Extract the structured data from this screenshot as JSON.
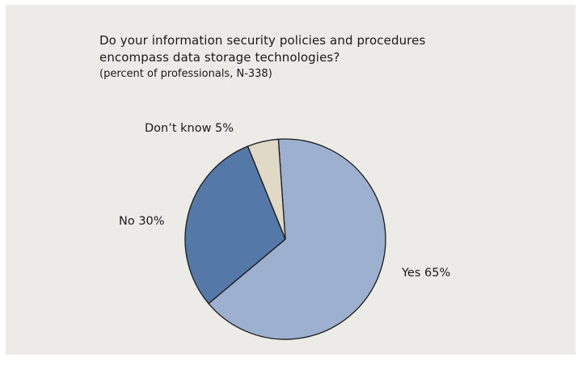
{
  "chart_data": {
    "type": "pie",
    "title_lines": [
      "Do your information security policies and procedures",
      "encompass data storage technologies?"
    ],
    "subtitle": "(percent of professionals, N-338)",
    "slices": [
      {
        "label": "Yes 65%",
        "category": "Yes",
        "value": 65,
        "color": "#9eb0d0"
      },
      {
        "label": "No 30%",
        "category": "No",
        "value": 30,
        "color": "#5478a8"
      },
      {
        "label": "Don’t know 5%",
        "category": "Don’t know",
        "value": 5,
        "color": "#dfd9c6"
      }
    ]
  },
  "colors": {
    "panel_background": "#edebe8",
    "slice_outline": "#1a1a1a"
  }
}
